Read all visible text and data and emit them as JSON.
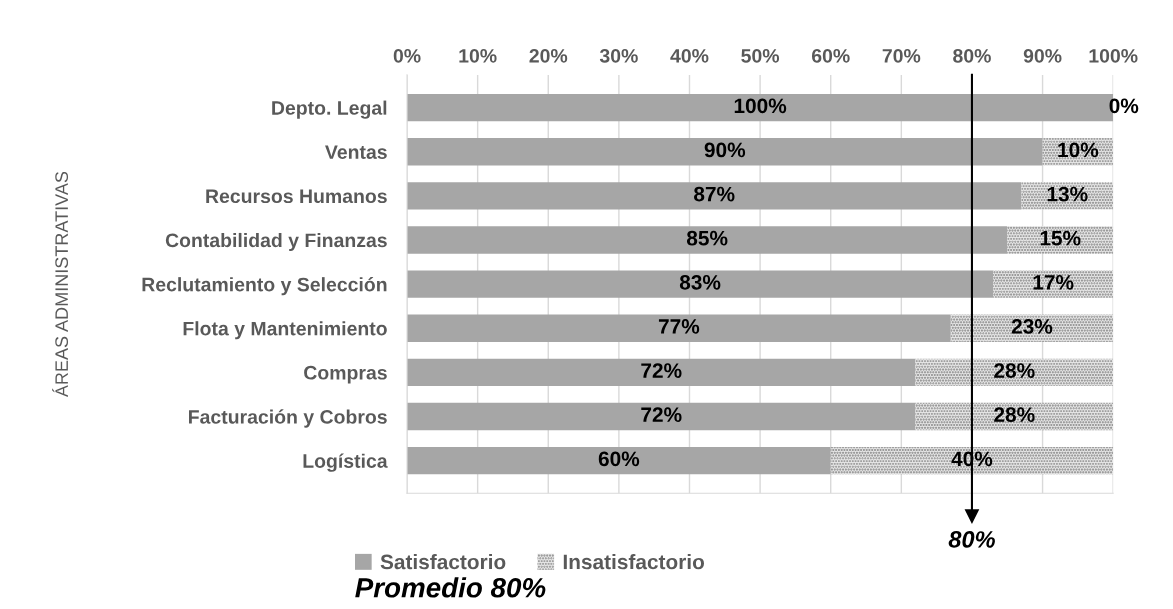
{
  "chart_data": {
    "type": "bar",
    "orientation": "horizontal",
    "stacked": true,
    "title": "Promedio 80%",
    "ylabel": "ÁREAS ADMINISTRATIVAS",
    "categories": [
      "Depto. Legal",
      "Ventas",
      "Recursos Humanos",
      "Contabilidad y Finanzas",
      "Reclutamiento y Selección",
      "Flota y Mantenimiento",
      "Compras",
      "Facturación y Cobros",
      "Logística"
    ],
    "series": [
      {
        "name": "Satisfactorio",
        "color": "#a6a6a6",
        "values": [
          100,
          90,
          87,
          85,
          83,
          77,
          72,
          72,
          60
        ],
        "value_labels": [
          "100%",
          "90%",
          "87%",
          "85%",
          "83%",
          "77%",
          "72%",
          "72%",
          "60%"
        ]
      },
      {
        "name": "Insatisfactorio",
        "color": "#e4e4e4",
        "values": [
          0,
          10,
          13,
          15,
          17,
          23,
          28,
          28,
          40
        ],
        "value_labels": [
          "0%",
          "10%",
          "13%",
          "15%",
          "17%",
          "23%",
          "28%",
          "28%",
          "40%"
        ]
      }
    ],
    "xlim": [
      0,
      100
    ],
    "xticks": [
      {
        "value": 0,
        "label": "0%"
      },
      {
        "value": 10,
        "label": "10%"
      },
      {
        "value": 20,
        "label": "20%"
      },
      {
        "value": 30,
        "label": "30%"
      },
      {
        "value": 40,
        "label": "40%"
      },
      {
        "value": 50,
        "label": "50%"
      },
      {
        "value": 60,
        "label": "60%"
      },
      {
        "value": 70,
        "label": "70%"
      },
      {
        "value": 80,
        "label": "80%"
      },
      {
        "value": 90,
        "label": "90%"
      },
      {
        "value": 100,
        "label": "100%"
      }
    ],
    "ref_lines": [
      {
        "axis": "x",
        "value": 80,
        "label": "80%",
        "color": "#000000",
        "line_style": "solid"
      }
    ],
    "grid": "x",
    "legend": "bottom"
  }
}
